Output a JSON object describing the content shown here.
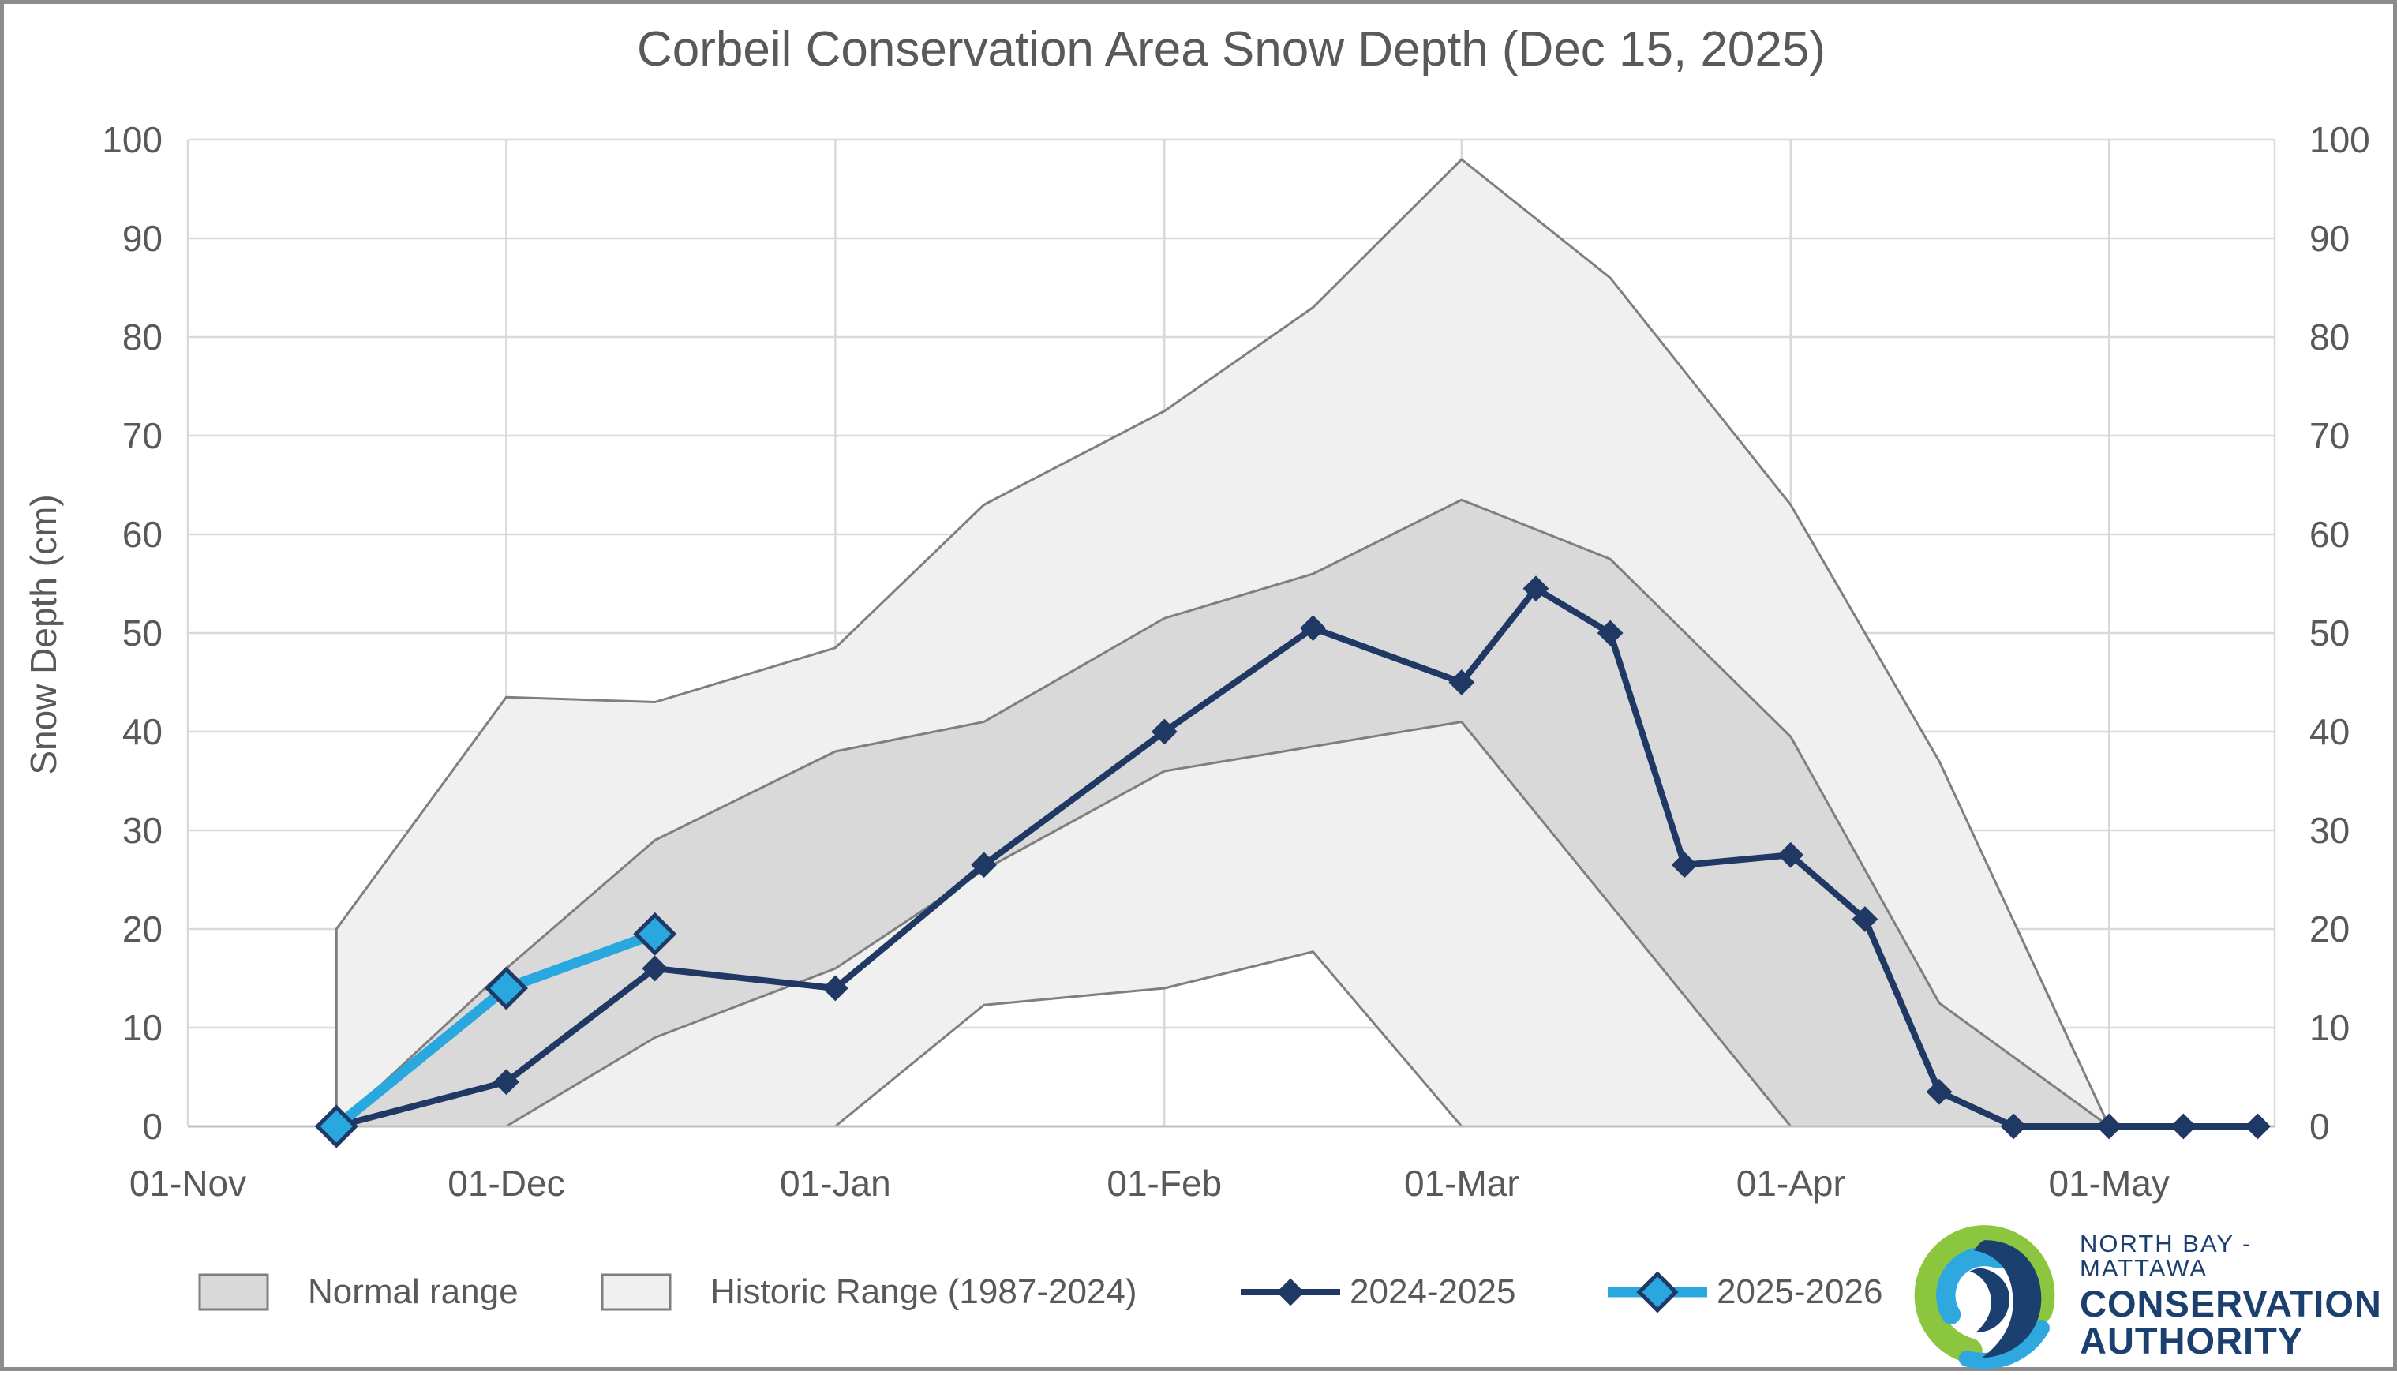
{
  "title": "Corbeil Conservation Area Snow Depth (Dec 15, 2025)",
  "y_axis": {
    "label": "Snow Depth (cm)",
    "min": 0,
    "max": 100,
    "step": 10
  },
  "x_axis": {
    "tick_labels": [
      "01-Nov",
      "01-Dec",
      "01-Jan",
      "01-Feb",
      "01-Mar",
      "01-Apr",
      "01-May"
    ],
    "tick_days": [
      0,
      30,
      61,
      92,
      120,
      151,
      181
    ]
  },
  "chart_data": {
    "type": "line",
    "title": "Corbeil Conservation Area Snow Depth (Dec 15, 2025)",
    "xlabel": "",
    "ylabel": "Snow Depth (cm)",
    "ylim": [
      0,
      100
    ],
    "grid": true,
    "legend_position": "bottom",
    "x_unit": "days since Nov 1",
    "x_tick_labels": [
      "01-Nov",
      "01-Dec",
      "01-Jan",
      "01-Feb",
      "01-Mar",
      "01-Apr",
      "01-May"
    ],
    "x_tick_days": [
      0,
      30,
      61,
      92,
      120,
      151,
      181
    ],
    "bands": [
      {
        "name": "Historic Range (1987-2024)",
        "fill": "#f0f0f0",
        "stroke": "#7f7f7f",
        "days": [
          14,
          30,
          44,
          61,
          75,
          92,
          106,
          120,
          134,
          151,
          165,
          181
        ],
        "upper": [
          20,
          43.5,
          43,
          48.5,
          63,
          72.5,
          83,
          98,
          86,
          63,
          37,
          0
        ],
        "lower": [
          0,
          0,
          0,
          0,
          12.3,
          14,
          17.7,
          0,
          0,
          0,
          0,
          0
        ]
      },
      {
        "name": "Normal range",
        "fill": "#d9d9d9",
        "stroke": "#7f7f7f",
        "days": [
          14,
          30,
          44,
          61,
          75,
          92,
          106,
          120,
          134,
          151,
          165,
          181
        ],
        "upper": [
          0,
          16,
          29,
          38,
          41,
          51.5,
          56,
          63.5,
          57.5,
          39.5,
          12.5,
          0
        ],
        "lower": [
          0,
          0,
          9,
          16,
          26,
          36,
          38.5,
          41,
          22.5,
          0,
          0,
          0
        ]
      }
    ],
    "series": [
      {
        "name": "2024-2025",
        "color": "#1f3864",
        "marker": "diamond",
        "marker_half_size": 15,
        "marker_fill": "#1f3864",
        "marker_stroke": "#1f3864",
        "line_width": 8,
        "days": [
          14,
          30,
          44,
          61,
          75,
          92,
          106,
          120,
          127,
          134,
          141,
          151,
          158,
          165,
          172,
          181,
          188,
          195
        ],
        "values": [
          0,
          4.5,
          16,
          14,
          26.5,
          40,
          50.5,
          45,
          54.5,
          50,
          26.5,
          27.5,
          21,
          3.5,
          0,
          0,
          0,
          0
        ]
      },
      {
        "name": "2025-2026",
        "color": "#29a8df",
        "marker": "diamond",
        "marker_half_size": 24,
        "marker_fill": "#29a8df",
        "marker_stroke": "#1f3864",
        "line_width": 13,
        "days": [
          14,
          30,
          44
        ],
        "values": [
          0,
          14,
          19.5
        ]
      }
    ]
  },
  "legend": {
    "items": [
      {
        "label": "Normal range",
        "swatch": "box",
        "fill": "#d9d9d9",
        "stroke": "#7f7f7f"
      },
      {
        "label": "Historic Range (1987-2024)",
        "swatch": "box",
        "fill": "#f0f0f0",
        "stroke": "#7f7f7f"
      },
      {
        "label": "2024-2025",
        "swatch": "line-diamond",
        "color": "#1f3864",
        "diamond_fill": "#1f3864",
        "diamond_stroke": "#1f3864",
        "diamond_half_size": 16,
        "line_width": 8
      },
      {
        "label": "2025-2026",
        "swatch": "line-diamond",
        "color": "#29a8df",
        "diamond_fill": "#29a8df",
        "diamond_stroke": "#1f3864",
        "diamond_half_size": 23,
        "line_width": 13
      }
    ]
  },
  "logo": {
    "line1": "NORTH BAY - MATTAWA",
    "line2": "CONSERVATION",
    "line3": "AUTHORITY",
    "green": "#8cc63e",
    "blue": "#2fa8e0",
    "navy": "#1b3f6e"
  },
  "colors": {
    "background": "#ffffff",
    "grid": "#d9d9d9",
    "axis": "#bfbfbf",
    "text": "#595959",
    "navy": "#1f3864",
    "light_blue": "#29a8df",
    "normal_fill": "#d9d9d9",
    "historic_fill": "#f0f0f0",
    "band_stroke": "#7f7f7f",
    "frame": "#8c8c8c"
  }
}
